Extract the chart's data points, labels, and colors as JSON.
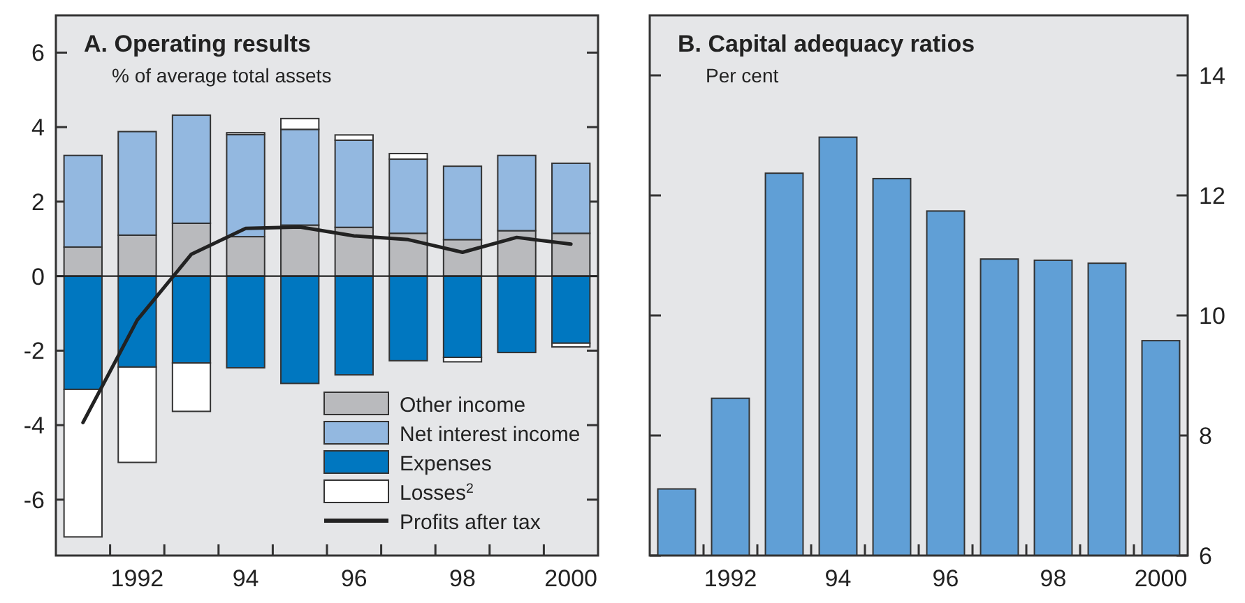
{
  "chart_data": [
    {
      "type": "bar",
      "title": "A.  Operating results",
      "subtitle": "% of average total assets",
      "categories": [
        null,
        "1992",
        null,
        "94",
        null,
        "96",
        null,
        "98",
        null,
        "2000"
      ],
      "stacked": true,
      "legend": "bottom right",
      "ylim": [
        -7.5,
        7
      ],
      "yticks": [
        -6,
        -4,
        -2,
        0,
        2,
        4,
        6
      ],
      "series": [
        {
          "name": "Other income",
          "color": "#b9babd",
          "values": [
            0.78,
            1.1,
            1.42,
            1.06,
            1.37,
            1.31,
            1.15,
            0.98,
            1.22,
            1.15
          ]
        },
        {
          "name": "Net interest income",
          "color": "#93b8e0",
          "values": [
            2.46,
            2.78,
            2.9,
            2.74,
            2.57,
            2.34,
            1.99,
            1.97,
            2.02,
            1.88
          ]
        },
        {
          "name": "Expenses",
          "color": "#0077c0",
          "values": [
            -3.04,
            -2.44,
            -2.33,
            -2.46,
            -2.88,
            -2.65,
            -2.27,
            -2.18,
            -2.05,
            -1.8
          ]
        },
        {
          "name": "Losses$^{2}$",
          "color": "#ffffff",
          "values": [
            -3.96,
            -2.56,
            -1.3,
            0.05,
            0.29,
            0.14,
            0.15,
            -0.12,
            null,
            -0.1
          ]
        },
        {
          "name": "Profits after tax",
          "type": "line",
          "color": "#222222",
          "values": [
            -3.93,
            -1.18,
            0.59,
            1.28,
            1.32,
            1.08,
            0.98,
            0.64,
            1.04,
            0.86
          ]
        }
      ]
    },
    {
      "type": "bar",
      "title": "B.  Capital adequacy ratios",
      "subtitle": "Per cent",
      "categories": [
        null,
        "1992",
        null,
        "94",
        null,
        "96",
        null,
        "98",
        null,
        "2000"
      ],
      "ylim": [
        6,
        15
      ],
      "yticks": [
        6,
        8,
        10,
        12,
        14
      ],
      "series": [
        {
          "color": "#609fd6",
          "values": [
            7.11,
            8.62,
            12.37,
            12.97,
            12.28,
            11.74,
            10.94,
            10.92,
            10.87,
            9.58
          ]
        }
      ]
    }
  ]
}
